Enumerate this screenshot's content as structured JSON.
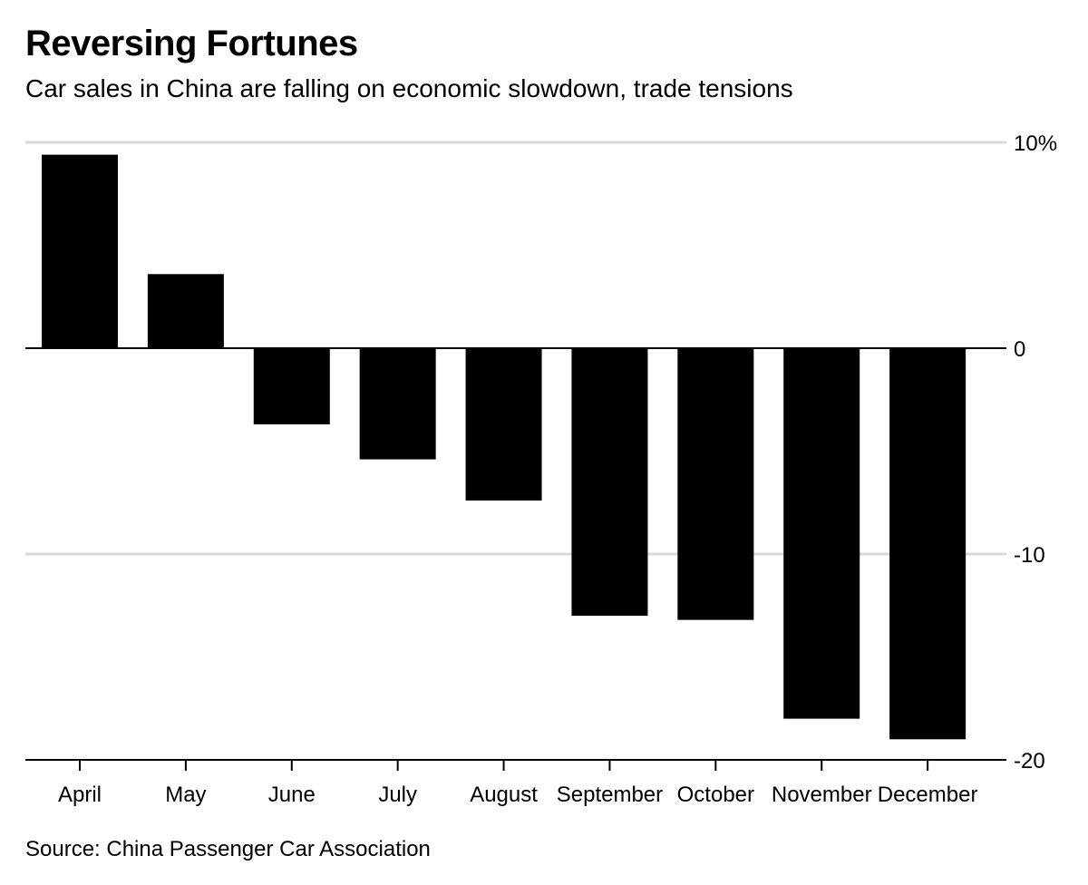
{
  "chart_data": {
    "type": "bar",
    "title": "Reversing Fortunes",
    "subtitle": "Car sales in China are falling on economic slowdown, trade tensions",
    "source": "Source: China Passenger Car Association",
    "categories": [
      "April",
      "May",
      "June",
      "July",
      "August",
      "September",
      "October",
      "November",
      "December"
    ],
    "values": [
      9.4,
      3.6,
      -3.7,
      -5.4,
      -7.4,
      -13.0,
      -13.2,
      -18.0,
      -19.0
    ],
    "ylim": [
      -20,
      10
    ],
    "yticks": [
      {
        "value": 10,
        "label": "10%"
      },
      {
        "value": 0,
        "label": "0"
      },
      {
        "value": -10,
        "label": "-10"
      },
      {
        "value": -20,
        "label": "-20"
      }
    ],
    "xlabel": "",
    "ylabel": "",
    "grid": true,
    "bar_color": "#000000",
    "grid_color": "#d9d9d9"
  }
}
